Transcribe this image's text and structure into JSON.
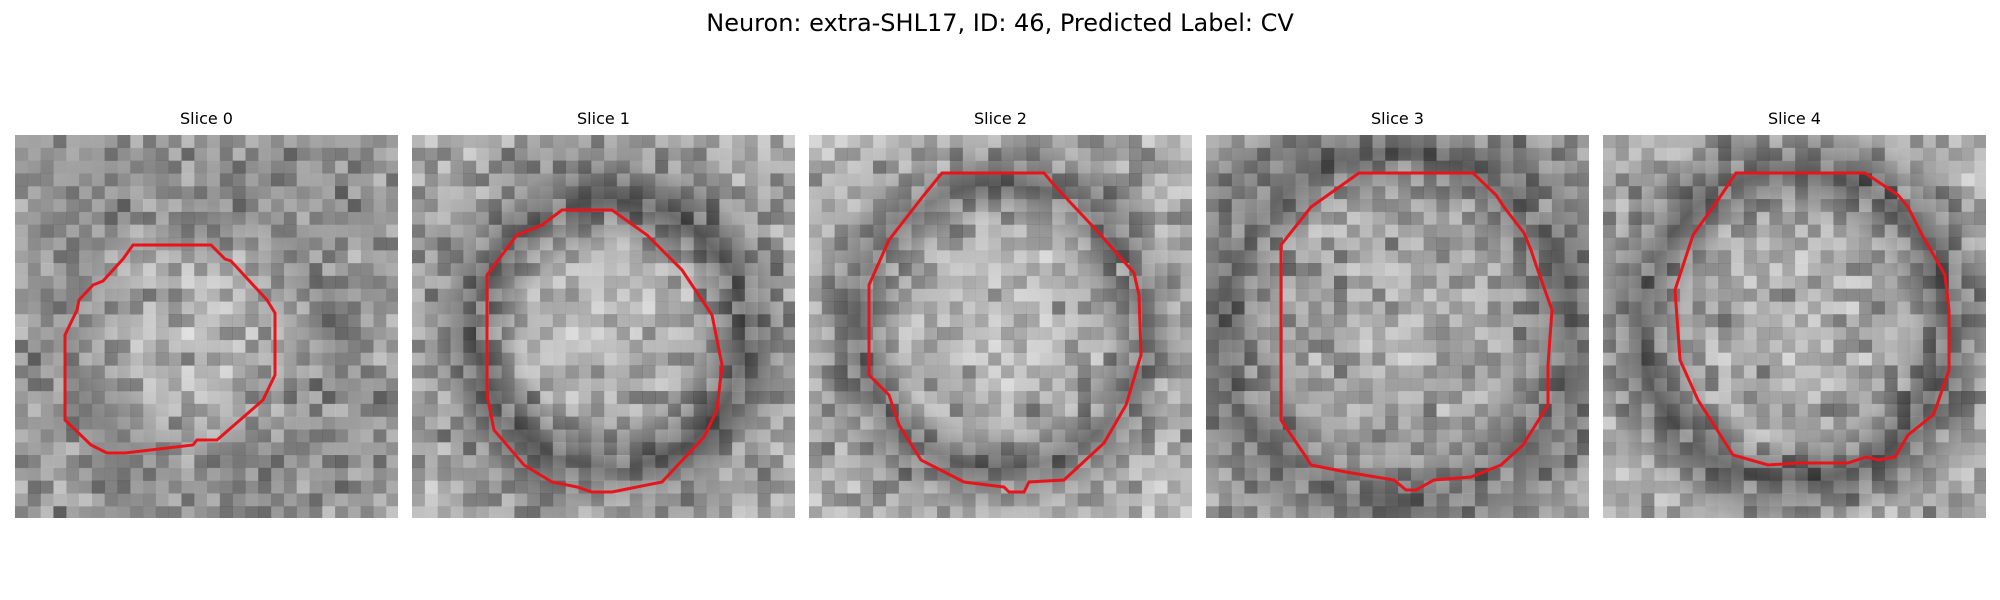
{
  "figure": {
    "title": "Neuron: extra-SHL17, ID: 46, Predicted Label: CV",
    "contour_color": "#e8141b",
    "colormap": "gray",
    "panels": [
      {
        "title": "Slice 0"
      },
      {
        "title": "Slice 1"
      },
      {
        "title": "Slice 2"
      },
      {
        "title": "Slice 3"
      },
      {
        "title": "Slice 4"
      }
    ]
  }
}
